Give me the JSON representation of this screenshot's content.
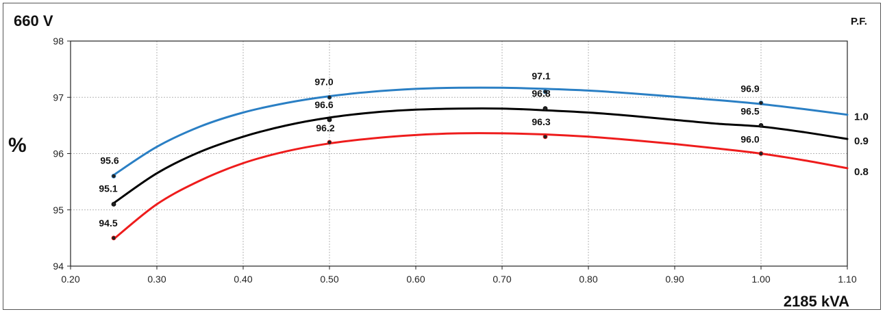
{
  "chart_data": {
    "type": "line",
    "title": "660 V",
    "xlabel": "2185 kVA",
    "ylabel": "%",
    "legend_title": "P.F.",
    "legend_placement": "right",
    "xlim": [
      0.2,
      1.1
    ],
    "ylim": [
      94,
      98
    ],
    "x_ticks": [
      "0.20",
      "0.30",
      "0.40",
      "0.50",
      "0.60",
      "0.70",
      "0.80",
      "0.90",
      "1.00",
      "1.10"
    ],
    "y_ticks": [
      "94",
      "95",
      "96",
      "97",
      "98"
    ],
    "grid": true,
    "x": [
      0.25,
      0.5,
      0.75,
      1.0
    ],
    "series": [
      {
        "name": "1.0",
        "color": "#2a7fc4",
        "values": [
          95.6,
          97.0,
          97.1,
          96.9
        ],
        "labels": [
          "95.6",
          "97.0",
          "97.1",
          "96.9"
        ],
        "curve": [
          [
            0.25,
            95.62
          ],
          [
            0.3,
            96.12
          ],
          [
            0.35,
            96.48
          ],
          [
            0.4,
            96.73
          ],
          [
            0.45,
            96.9
          ],
          [
            0.5,
            97.02
          ],
          [
            0.55,
            97.1
          ],
          [
            0.6,
            97.15
          ],
          [
            0.65,
            97.17
          ],
          [
            0.7,
            97.17
          ],
          [
            0.75,
            97.15
          ],
          [
            0.8,
            97.12
          ],
          [
            0.85,
            97.07
          ],
          [
            0.9,
            97.01
          ],
          [
            0.95,
            96.95
          ],
          [
            1.0,
            96.88
          ],
          [
            1.05,
            96.79
          ],
          [
            1.1,
            96.69
          ]
        ]
      },
      {
        "name": "0.9",
        "color": "#000000",
        "values": [
          95.1,
          96.6,
          96.8,
          96.5
        ],
        "labels": [
          "95.1",
          "96.6",
          "96.8",
          "96.5"
        ],
        "curve": [
          [
            0.25,
            95.12
          ],
          [
            0.3,
            95.65
          ],
          [
            0.35,
            96.03
          ],
          [
            0.4,
            96.3
          ],
          [
            0.45,
            96.5
          ],
          [
            0.5,
            96.64
          ],
          [
            0.55,
            96.73
          ],
          [
            0.6,
            96.78
          ],
          [
            0.65,
            96.8
          ],
          [
            0.7,
            96.8
          ],
          [
            0.75,
            96.77
          ],
          [
            0.8,
            96.73
          ],
          [
            0.85,
            96.67
          ],
          [
            0.9,
            96.6
          ],
          [
            0.95,
            96.53
          ],
          [
            1.0,
            96.48
          ],
          [
            1.05,
            96.38
          ],
          [
            1.1,
            96.26
          ]
        ]
      },
      {
        "name": "0.8",
        "color": "#ee1c1c",
        "values": [
          94.5,
          96.2,
          96.3,
          96.0
        ],
        "labels": [
          "94.5",
          "96.2",
          "96.3",
          "96.0"
        ],
        "curve": [
          [
            0.25,
            94.48
          ],
          [
            0.3,
            95.1
          ],
          [
            0.35,
            95.52
          ],
          [
            0.4,
            95.83
          ],
          [
            0.45,
            96.04
          ],
          [
            0.5,
            96.18
          ],
          [
            0.55,
            96.27
          ],
          [
            0.6,
            96.33
          ],
          [
            0.65,
            96.36
          ],
          [
            0.7,
            96.36
          ],
          [
            0.75,
            96.34
          ],
          [
            0.8,
            96.3
          ],
          [
            0.85,
            96.24
          ],
          [
            0.9,
            96.17
          ],
          [
            0.95,
            96.09
          ],
          [
            1.0,
            96.0
          ],
          [
            1.05,
            95.88
          ],
          [
            1.1,
            95.74
          ]
        ]
      }
    ]
  }
}
